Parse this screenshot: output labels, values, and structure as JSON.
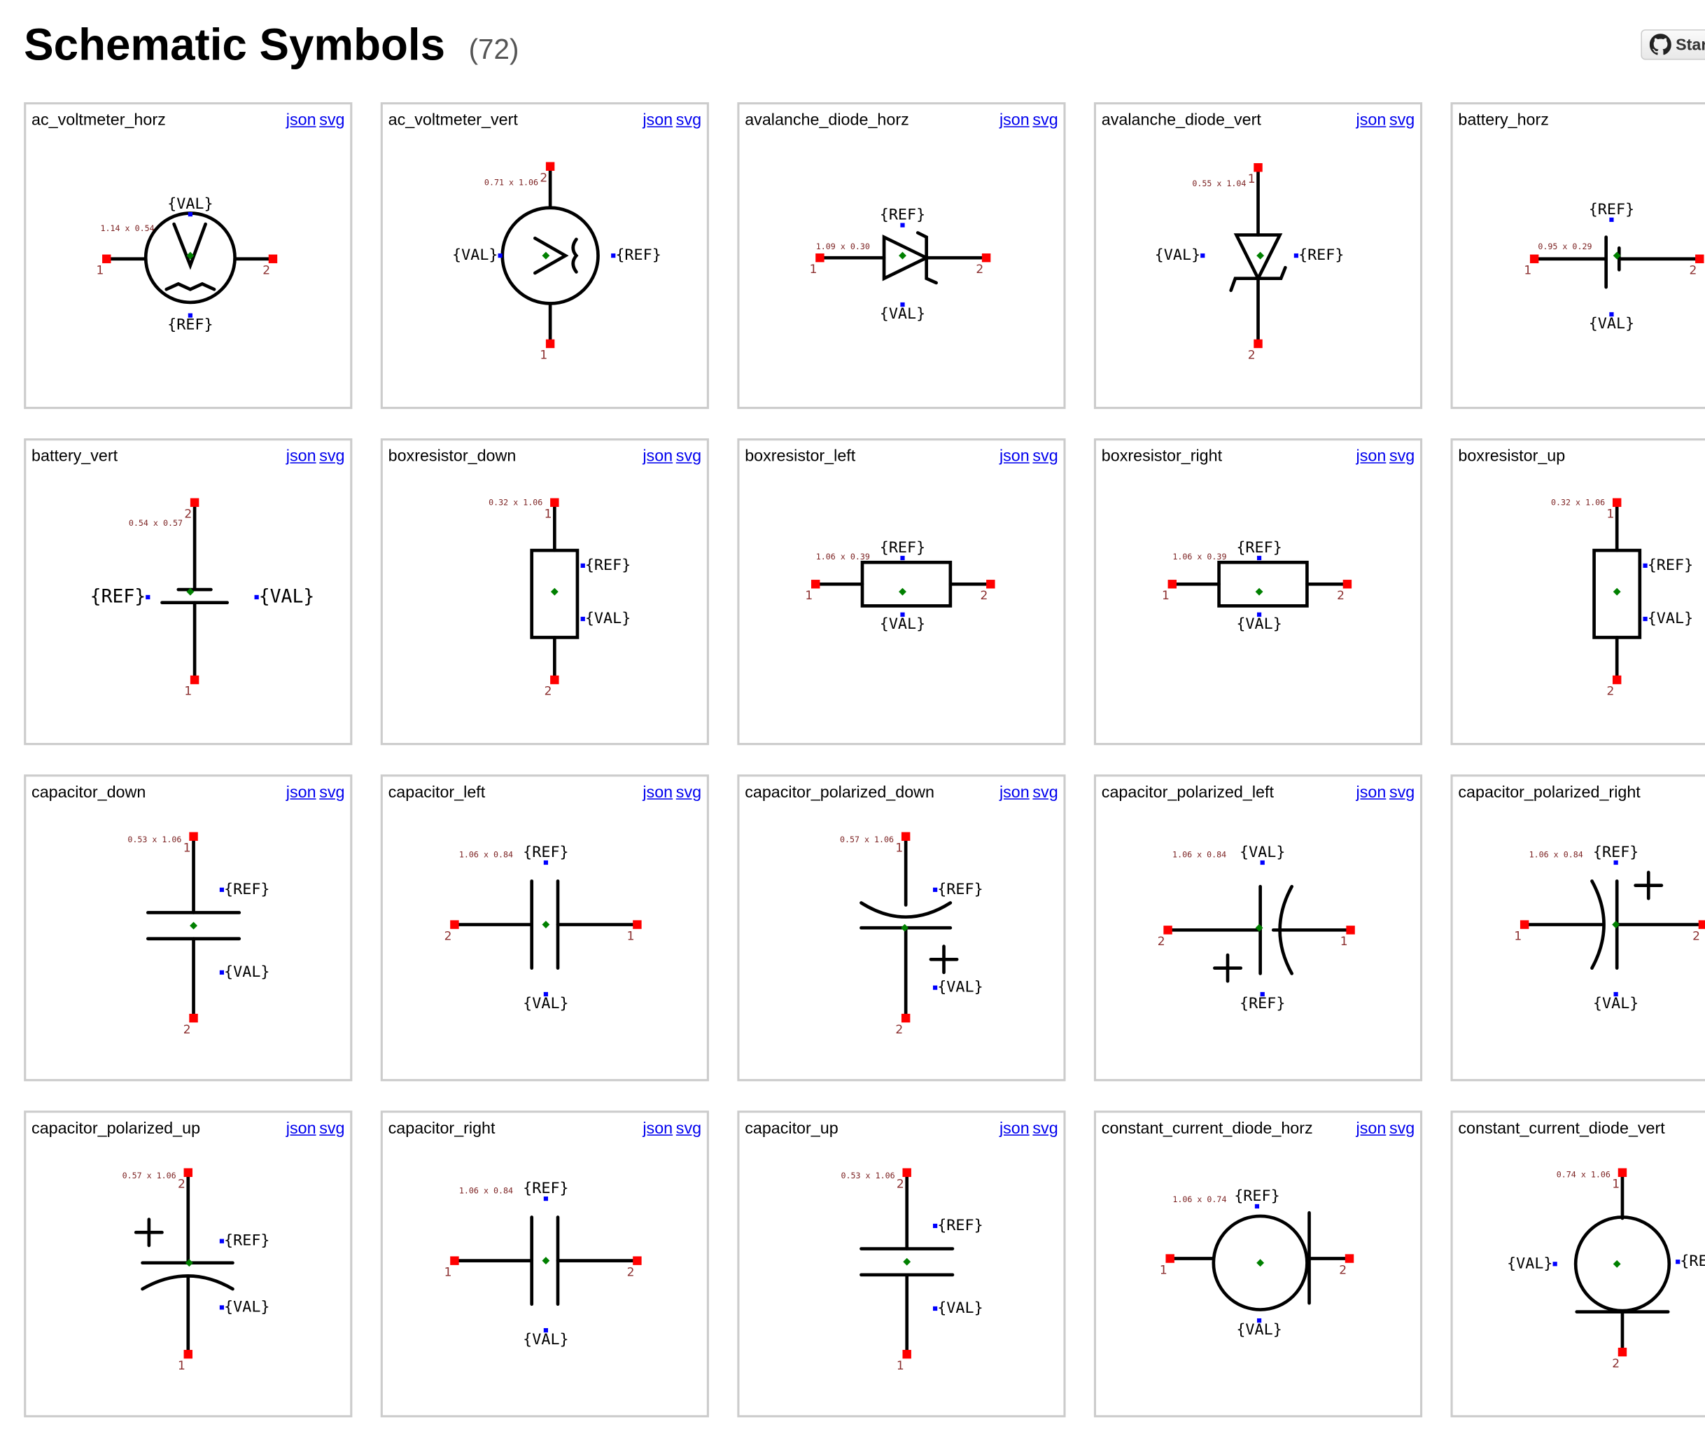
{
  "header": {
    "title": "Schematic Symbols",
    "count": "(72)",
    "star_label": "Star"
  },
  "colors": {
    "pin": "#ff0000",
    "pin_label": "#8b2e2e",
    "anchor": "#0000ff",
    "center": "#008000",
    "link": "#0000ee",
    "border": "#cccccc"
  },
  "cards": [
    {
      "name": "ac_voltmeter_horz",
      "json_label": "json",
      "svg_label": "svg",
      "ref": "{REF}",
      "val": "{VAL}",
      "dims": "1.14 x 0.54",
      "pins": [
        "1",
        "2"
      ]
    },
    {
      "name": "ac_voltmeter_vert",
      "json_label": "json",
      "svg_label": "svg",
      "ref": "{REF}",
      "val": "{VAL}",
      "dims": "0.71 x 1.06",
      "pins": [
        "2",
        "1"
      ]
    },
    {
      "name": "avalanche_diode_horz",
      "json_label": "json",
      "svg_label": "svg",
      "ref": "{REF}",
      "val": "{VAL}",
      "dims": "1.09 x 0.30",
      "pins": [
        "1",
        "2"
      ]
    },
    {
      "name": "avalanche_diode_vert",
      "json_label": "json",
      "svg_label": "svg",
      "ref": "{REF}",
      "val": "{VAL}",
      "dims": "0.55 x 1.04",
      "pins": [
        "1",
        "2"
      ]
    },
    {
      "name": "battery_horz",
      "ref": "{REF}",
      "val": "{VAL}",
      "dims": "0.95 x 0.29",
      "pins": [
        "1",
        "2"
      ]
    },
    {
      "name": "battery_vert",
      "json_label": "json",
      "svg_label": "svg",
      "ref": "{REF}",
      "val": "{VAL}",
      "dims": "0.54 x 0.57",
      "pins": [
        "2",
        "1"
      ]
    },
    {
      "name": "boxresistor_down",
      "json_label": "json",
      "svg_label": "svg",
      "ref": "{REF}",
      "val": "{VAL}",
      "dims": "0.32 x 1.06",
      "pins": [
        "1",
        "2"
      ]
    },
    {
      "name": "boxresistor_left",
      "json_label": "json",
      "svg_label": "svg",
      "ref": "{REF}",
      "val": "{VAL}",
      "dims": "1.06 x 0.39",
      "pins": [
        "1",
        "2"
      ]
    },
    {
      "name": "boxresistor_right",
      "json_label": "json",
      "svg_label": "svg",
      "ref": "{REF}",
      "val": "{VAL}",
      "dims": "1.06 x 0.39",
      "pins": [
        "1",
        "2"
      ]
    },
    {
      "name": "boxresistor_up",
      "ref": "{REF}",
      "val": "{VAL}",
      "dims": "0.32 x 1.06",
      "pins": [
        "1",
        "2"
      ]
    },
    {
      "name": "capacitor_down",
      "json_label": "json",
      "svg_label": "svg",
      "ref": "{REF}",
      "val": "{VAL}",
      "dims": "0.53 x 1.06",
      "pins": [
        "1",
        "2"
      ]
    },
    {
      "name": "capacitor_left",
      "json_label": "json",
      "svg_label": "svg",
      "ref": "{REF}",
      "val": "{VAL}",
      "dims": "1.06 x 0.84",
      "pins": [
        "2",
        "1"
      ]
    },
    {
      "name": "capacitor_polarized_down",
      "json_label": "json",
      "svg_label": "svg",
      "ref": "{REF}",
      "val": "{VAL}",
      "dims": "0.57 x 1.06",
      "pins": [
        "1",
        "2"
      ]
    },
    {
      "name": "capacitor_polarized_left",
      "json_label": "json",
      "svg_label": "svg",
      "ref": "{REF}",
      "val": "{VAL}",
      "dims": "1.06 x 0.84",
      "pins": [
        "2",
        "1"
      ]
    },
    {
      "name": "capacitor_polarized_right",
      "ref": "{REF}",
      "val": "{VAL}",
      "dims": "1.06 x 0.84",
      "pins": [
        "1",
        "2"
      ]
    },
    {
      "name": "capacitor_polarized_up",
      "json_label": "json",
      "svg_label": "svg",
      "ref": "{REF}",
      "val": "{VAL}",
      "dims": "0.57 x 1.06",
      "pins": [
        "2",
        "1"
      ]
    },
    {
      "name": "capacitor_right",
      "json_label": "json",
      "svg_label": "svg",
      "ref": "{REF}",
      "val": "{VAL}",
      "dims": "1.06 x 0.84",
      "pins": [
        "1",
        "2"
      ]
    },
    {
      "name": "capacitor_up",
      "json_label": "json",
      "svg_label": "svg",
      "ref": "{REF}",
      "val": "{VAL}",
      "dims": "0.53 x 1.06",
      "pins": [
        "2",
        "1"
      ]
    },
    {
      "name": "constant_current_diode_horz",
      "json_label": "json",
      "svg_label": "svg",
      "ref": "{REF}",
      "val": "{VAL}",
      "dims": "1.06 x 0.74",
      "pins": [
        "1",
        "2"
      ]
    },
    {
      "name": "constant_current_diode_vert",
      "ref": "{REF}",
      "val": "{VAL}",
      "dims": "0.74 x 1.06",
      "pins": [
        "1",
        "2"
      ]
    }
  ]
}
